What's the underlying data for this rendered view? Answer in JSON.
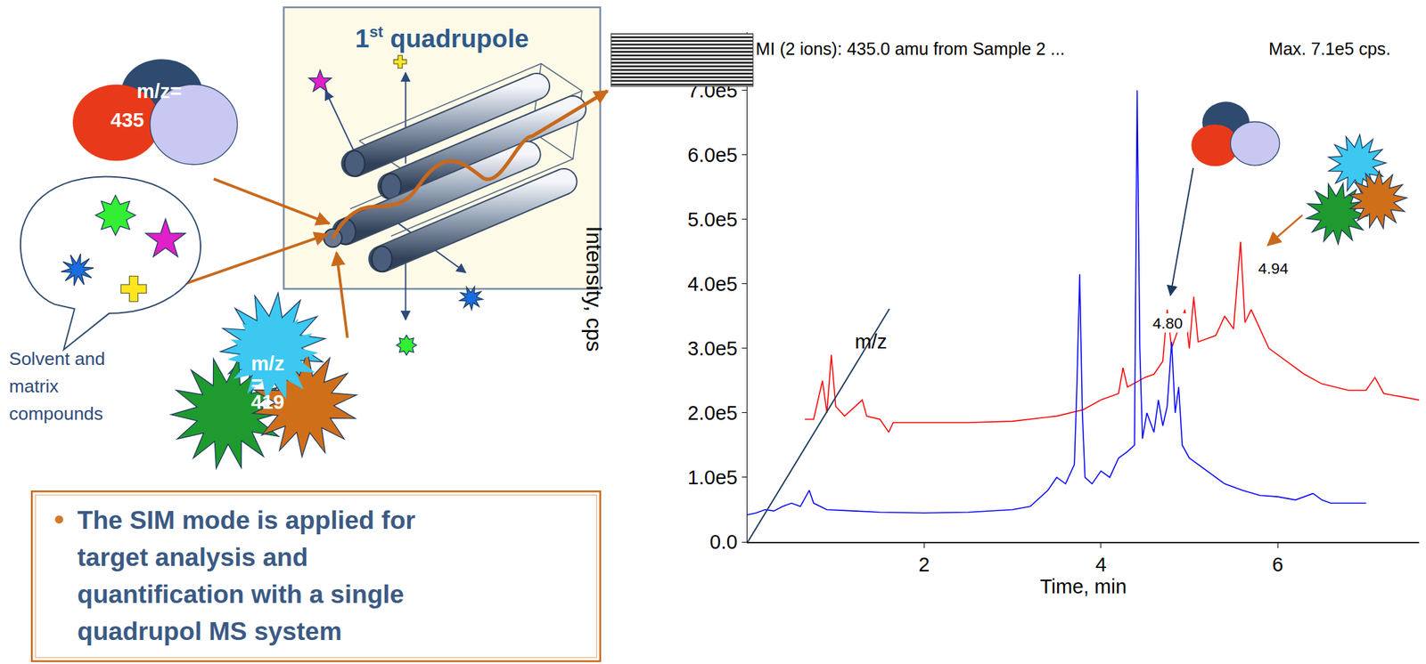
{
  "diagram": {
    "quadrupole_title": {
      "main": "1",
      "superscript": "st",
      "rest": " quadrupole"
    },
    "analyte_ion": [
      "m/z=",
      "435"
    ],
    "interfering_ions": [
      "m/z",
      "=",
      "419"
    ],
    "bubble_caption": [
      "Solvent and",
      "matrix",
      "compounds"
    ],
    "bullet": [
      "The SIM mode is applied for",
      "target analysis and",
      "quantification with a single",
      "quadrupol MS system"
    ]
  },
  "chart_data": {
    "type": "line",
    "title": "MI (2 ions): 435.0 amu from Sample 2 ...",
    "subtitle": "Max. 7.1e5 cps.",
    "x_label": "Time, min",
    "y_label": "Intensity, cps",
    "annotations": [
      "m/z",
      "4.80",
      "4.94"
    ],
    "xlim": [
      0,
      7.6
    ],
    "xticks": [
      2,
      4,
      6
    ],
    "ylim": [
      0,
      790000
    ],
    "yticks": [
      {
        "value": 0,
        "label": "0.0"
      },
      {
        "value": 100000,
        "label": "1.0e5"
      },
      {
        "value": 200000,
        "label": "2.0e5"
      },
      {
        "value": 300000,
        "label": "3.0e5"
      },
      {
        "value": 400000,
        "label": "4.0e5"
      },
      {
        "value": 500000,
        "label": "5.0e5"
      },
      {
        "value": 600000,
        "label": "6.0e5"
      },
      {
        "value": 700000,
        "label": "7.0e5"
      }
    ],
    "grid": false,
    "series": [
      {
        "color": "#ff0000",
        "x": [
          0.65,
          0.75,
          0.85,
          0.9,
          0.95,
          1.0,
          1.1,
          1.3,
          1.35,
          1.5,
          1.6,
          1.65,
          2.0,
          2.5,
          3.0,
          3.5,
          3.8,
          4.0,
          4.2,
          4.25,
          4.3,
          4.5,
          4.6,
          4.7,
          4.75,
          4.8,
          4.9,
          4.95,
          5.0,
          5.05,
          5.1,
          5.3,
          5.4,
          5.5,
          5.58,
          5.63,
          5.7,
          5.8,
          5.9,
          6.1,
          6.3,
          6.5,
          6.8,
          7.0,
          7.1,
          7.2,
          7.4,
          7.6
        ],
        "values": [
          190000,
          190000,
          250000,
          200000,
          290000,
          210000,
          195000,
          220000,
          195000,
          190000,
          170000,
          185000,
          185000,
          185000,
          187000,
          195000,
          205000,
          220000,
          230000,
          270000,
          240000,
          255000,
          260000,
          280000,
          360000,
          300000,
          340000,
          360000,
          300000,
          380000,
          310000,
          320000,
          350000,
          330000,
          465000,
          340000,
          360000,
          330000,
          300000,
          280000,
          260000,
          245000,
          235000,
          235000,
          255000,
          230000,
          225000,
          220000
        ]
      },
      {
        "color": "#0000ff",
        "x": [
          0.0,
          0.1,
          0.2,
          0.3,
          0.4,
          0.5,
          0.6,
          0.7,
          0.75,
          0.9,
          1.2,
          1.5,
          2.0,
          2.5,
          3.0,
          3.2,
          3.4,
          3.5,
          3.6,
          3.7,
          3.73,
          3.76,
          3.79,
          3.82,
          3.9,
          4.0,
          4.1,
          4.2,
          4.3,
          4.38,
          4.41,
          4.44,
          4.47,
          4.52,
          4.6,
          4.65,
          4.7,
          4.75,
          4.8,
          4.84,
          4.88,
          4.92,
          5.0,
          5.2,
          5.4,
          5.6,
          5.8,
          6.0,
          6.2,
          6.4,
          6.5,
          6.6,
          6.8,
          7.0
        ],
        "values": [
          42000,
          45000,
          50000,
          48000,
          55000,
          60000,
          55000,
          80000,
          60000,
          50000,
          48000,
          46000,
          45000,
          46000,
          50000,
          55000,
          80000,
          100000,
          90000,
          120000,
          250000,
          415000,
          200000,
          100000,
          90000,
          110000,
          100000,
          130000,
          140000,
          150000,
          700000,
          300000,
          160000,
          200000,
          170000,
          220000,
          180000,
          210000,
          310000,
          200000,
          240000,
          150000,
          130000,
          110000,
          90000,
          80000,
          72000,
          70000,
          65000,
          75000,
          65000,
          60000,
          60000,
          60000
        ]
      }
    ]
  }
}
